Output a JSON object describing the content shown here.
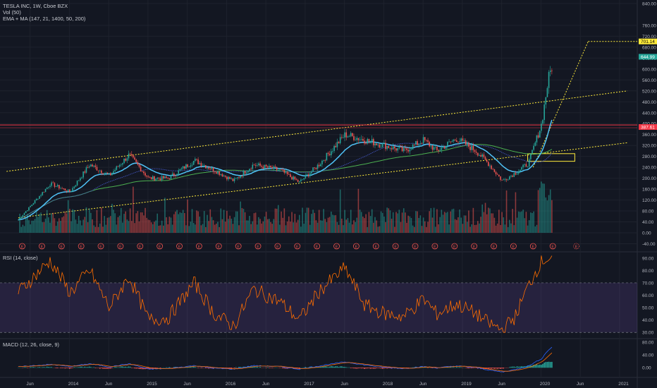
{
  "header": {
    "title": "TESLA INC, 1W, Cboe BZX",
    "volume": "Vol (50)",
    "ema_ma": "EMA + MA (147, 21, 1400, 50, 200)",
    "rsi": "RSI (14, close)",
    "macd": "MACD (12, 26, close, 9)"
  },
  "price_axis": [
    "840.00",
    "760.00",
    "720.00",
    "680.00",
    "640.00",
    "600.00",
    "560.00",
    "520.00",
    "480.00",
    "440.00",
    "400.00",
    "360.00",
    "320.00",
    "280.00",
    "240.00",
    "200.00",
    "160.00",
    "120.00",
    "80.00",
    "40.00",
    "0.00",
    "-40.00"
  ],
  "price_tags": [
    {
      "label": "701.14",
      "value": 701.14,
      "bg": "#ffeb3b",
      "fg": "#000000"
    },
    {
      "label": "644.99",
      "value": 644.99,
      "bg": "#26a69a",
      "fg": "#ffffff"
    },
    {
      "label": "387.61",
      "value": 387.61,
      "bg": "#f23645",
      "fg": "#ffffff"
    }
  ],
  "rsi_axis": [
    "90.00",
    "80.00",
    "70.00",
    "60.00",
    "50.00",
    "40.00",
    "30.00"
  ],
  "macd_axis": [
    "80.00",
    "40.00",
    "0.00"
  ],
  "time_axis": [
    "Jun",
    "2014",
    "Jun",
    "2015",
    "Jun",
    "2016",
    "Jun",
    "2017",
    "Jun",
    "2018",
    "Jun",
    "2019",
    "Jun",
    "2020",
    "Jun",
    "2021"
  ],
  "earnings_marker": "E",
  "colors": {
    "up": "#26a69a",
    "down": "#ef5350",
    "ema": "#4fc3f7",
    "ma_fast": "#3f51b5",
    "ma_slow": "#4caf50",
    "trend": "#ffeb3b",
    "resistance": "#f23645",
    "rsi": "#ff6d00",
    "rsi_band": "#7e57c2"
  },
  "chart_data": {
    "type": "line",
    "title": "TESLA INC, 1W, Cboe BZX",
    "x": [
      "2013-04",
      "2013-09",
      "2013-12",
      "2014-03",
      "2014-06",
      "2014-09",
      "2014-12",
      "2015-03",
      "2015-07",
      "2015-10",
      "2016-01",
      "2016-04",
      "2016-08",
      "2016-11",
      "2017-02",
      "2017-06",
      "2017-09",
      "2017-12",
      "2018-03",
      "2018-06",
      "2018-08",
      "2018-11",
      "2019-02",
      "2019-04",
      "2019-06",
      "2019-08",
      "2019-10",
      "2019-12",
      "2020-01",
      "2020-02"
    ],
    "series": [
      {
        "name": "Price",
        "values": [
          45,
          180,
          150,
          250,
          210,
          285,
          200,
          200,
          265,
          230,
          190,
          250,
          230,
          185,
          250,
          360,
          340,
          320,
          300,
          340,
          300,
          345,
          300,
          250,
          190,
          220,
          255,
          400,
          560,
          650
        ]
      },
      {
        "name": "RSI",
        "values": [
          62,
          88,
          62,
          80,
          50,
          75,
          40,
          42,
          70,
          45,
          35,
          65,
          55,
          40,
          63,
          82,
          52,
          45,
          43,
          57,
          45,
          53,
          45,
          37,
          32,
          43,
          68,
          88,
          90,
          90
        ]
      },
      {
        "name": "MACD",
        "values": [
          2,
          10,
          3,
          12,
          2,
          12,
          -5,
          -3,
          6,
          -2,
          -5,
          6,
          3,
          -5,
          5,
          18,
          8,
          1,
          -3,
          3,
          -1,
          5,
          0,
          -8,
          -14,
          -6,
          5,
          28,
          55,
          70
        ]
      }
    ],
    "ylim": [
      -40,
      840
    ]
  }
}
